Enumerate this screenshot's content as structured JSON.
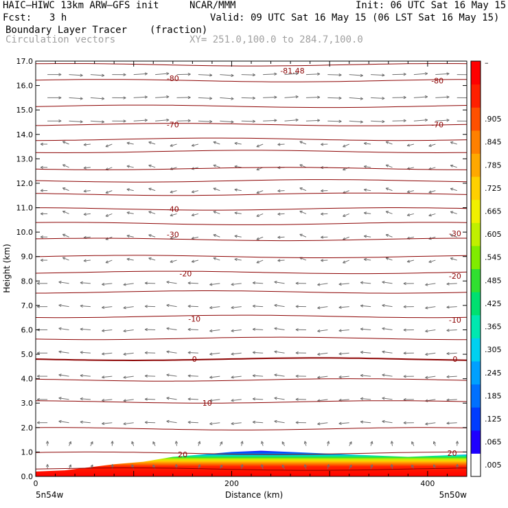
{
  "header": {
    "model": "HAIC–HIWC 13km ARW–GFS init",
    "org": "NCAR/MMM",
    "init": "Init: 06 UTC Sat 16 May 15",
    "fcst_label": "Fcst:",
    "fcst_value": "3 h",
    "valid": "Valid: 09 UTC Sat 16 May 15 (06 LST Sat 16 May 15)",
    "field_name": "Boundary Layer Tracer",
    "field_units": "(fraction)",
    "vector_label": "Circulation vectors",
    "xy_label": "XY= 251.0,100.0 to 284.7,100.0"
  },
  "chart_data": {
    "type": "heatmap",
    "xlabel": "Distance (km)",
    "ylabel": "Height (km)",
    "xlim": [
      0,
      440
    ],
    "ylim": [
      0,
      17
    ],
    "x_ticks": [
      "0",
      "200",
      "400"
    ],
    "x_tick_values": [
      0,
      200,
      400
    ],
    "y_ticks": [
      "0.0",
      "1.0",
      "2.0",
      "3.0",
      "4.0",
      "5.0",
      "6.0",
      "7.0",
      "8.0",
      "9.0",
      "10.0",
      "11.0",
      "12.0",
      "13.0",
      "14.0",
      "15.0",
      "16.0",
      "17.0"
    ],
    "endpoint_labels": {
      "left": "5n54w",
      "right": "5n50w"
    },
    "isotherm_labels": [
      {
        "text": "-80",
        "x": 140,
        "y": 16.3
      },
      {
        "text": "-80",
        "x": 410,
        "y": 16.2
      },
      {
        "text": "-81.48",
        "x": 262,
        "y": 16.6
      },
      {
        "text": "-70",
        "x": 140,
        "y": 14.4
      },
      {
        "text": "-70",
        "x": 410,
        "y": 14.4
      },
      {
        "text": "-40",
        "x": 140,
        "y": 10.95
      },
      {
        "text": "-30",
        "x": 140,
        "y": 9.9
      },
      {
        "text": "-30",
        "x": 428,
        "y": 9.95
      },
      {
        "text": "-20",
        "x": 153,
        "y": 8.3
      },
      {
        "text": "-20",
        "x": 428,
        "y": 8.2
      },
      {
        "text": "-10",
        "x": 162,
        "y": 6.45
      },
      {
        "text": "-10",
        "x": 428,
        "y": 6.4
      },
      {
        "text": "0",
        "x": 162,
        "y": 4.8
      },
      {
        "text": "0",
        "x": 428,
        "y": 4.8
      },
      {
        "text": "10",
        "x": 175,
        "y": 3.0
      },
      {
        "text": "20",
        "x": 150,
        "y": 0.9
      },
      {
        "text": "20",
        "x": 425,
        "y": 0.95
      }
    ],
    "isotherm_heights": [
      0.3,
      0.95,
      1.95,
      3.05,
      3.95,
      4.8,
      5.65,
      6.55,
      7.55,
      8.35,
      9.0,
      9.7,
      10.35,
      10.95,
      11.55,
      12.1,
      12.6,
      13.3,
      13.8,
      14.4,
      15.15,
      16.2,
      16.85
    ],
    "tracer_top": [
      [
        0,
        0.2
      ],
      [
        30,
        0.25
      ],
      [
        50,
        0.35
      ],
      [
        80,
        0.5
      ],
      [
        110,
        0.6
      ],
      [
        140,
        0.8
      ],
      [
        170,
        0.9
      ],
      [
        200,
        1.0
      ],
      [
        230,
        1.05
      ],
      [
        260,
        1.0
      ],
      [
        290,
        0.95
      ],
      [
        320,
        0.9
      ],
      [
        350,
        0.85
      ],
      [
        380,
        0.8
      ],
      [
        410,
        0.85
      ],
      [
        440,
        0.9
      ]
    ],
    "colorbar": {
      "labels": [
        ".005",
        ".065",
        ".125",
        ".185",
        ".245",
        ".305",
        ".365",
        ".425",
        ".485",
        ".545",
        ".605",
        ".665",
        ".725",
        ".785",
        ".845",
        ".905"
      ],
      "top_label": "–",
      "colors": [
        "#ffffff",
        "#1e00ff",
        "#003cff",
        "#0070ff",
        "#00a0ff",
        "#00d0f0",
        "#00e8b0",
        "#00e070",
        "#30e030",
        "#80ec00",
        "#c0f000",
        "#f0f000",
        "#ffd000",
        "#ffa800",
        "#ff8000",
        "#ff5000",
        "#ff2000",
        "#ff0000"
      ]
    },
    "vector_color": "#707070",
    "isotherm_color": "#8b0000"
  }
}
